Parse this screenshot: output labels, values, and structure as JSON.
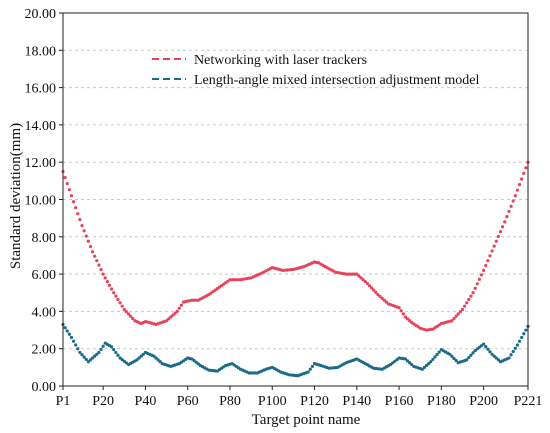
{
  "chart_data": {
    "type": "scatter",
    "xlabel": "Target point name",
    "ylabel": "Standard deviation(mm)",
    "xlim": [
      1,
      221
    ],
    "ylim": [
      0,
      20
    ],
    "x_tick_values": [
      1,
      20,
      40,
      60,
      80,
      100,
      120,
      140,
      160,
      180,
      200,
      221
    ],
    "x_tick_labels": [
      "P1",
      "P20",
      "P40",
      "P60",
      "P80",
      "P100",
      "P120",
      "P140",
      "P160",
      "P180",
      "P200",
      "P221"
    ],
    "y_tick_values": [
      0,
      2,
      4,
      6,
      8,
      10,
      12,
      14,
      16,
      18,
      20
    ],
    "y_tick_labels": [
      "0.00",
      "2.00",
      "4.00",
      "6.00",
      "8.00",
      "10.00",
      "12.00",
      "14.00",
      "16.00",
      "18.00",
      "20.00"
    ],
    "grid": "horizontal dashed",
    "legend_placement": "top-center",
    "series": [
      {
        "name": "Networking with laser trackers",
        "color": "#e8435a",
        "x": [
          1,
          5,
          10,
          15,
          20,
          25,
          30,
          35,
          38,
          40,
          42,
          45,
          50,
          55,
          58,
          62,
          65,
          70,
          75,
          80,
          85,
          90,
          95,
          100,
          105,
          110,
          115,
          120,
          122,
          125,
          130,
          135,
          140,
          145,
          150,
          155,
          160,
          163,
          166,
          170,
          173,
          176,
          180,
          185,
          190,
          195,
          200,
          205,
          210,
          215,
          221
        ],
        "y": [
          11.5,
          10.2,
          8.6,
          7.2,
          6.0,
          5.0,
          4.1,
          3.5,
          3.35,
          3.45,
          3.4,
          3.3,
          3.5,
          4.0,
          4.5,
          4.6,
          4.6,
          4.9,
          5.3,
          5.7,
          5.7,
          5.8,
          6.05,
          6.35,
          6.2,
          6.25,
          6.4,
          6.65,
          6.6,
          6.4,
          6.1,
          6.0,
          6.0,
          5.5,
          4.9,
          4.4,
          4.2,
          3.7,
          3.4,
          3.1,
          3.0,
          3.05,
          3.35,
          3.5,
          4.1,
          5.0,
          6.2,
          7.5,
          8.8,
          10.2,
          12.0
        ]
      },
      {
        "name": "Length-angle mixed intersection adjustment model",
        "color": "#1a6b8a",
        "x": [
          1,
          5,
          9,
          13,
          18,
          21,
          24,
          28,
          32,
          36,
          40,
          44,
          48,
          52,
          56,
          60,
          62,
          66,
          70,
          74,
          78,
          81,
          85,
          89,
          93,
          97,
          100,
          104,
          108,
          112,
          117,
          120,
          123,
          127,
          131,
          135,
          140,
          144,
          148,
          152,
          156,
          160,
          163,
          167,
          171,
          175,
          180,
          184,
          188,
          192,
          196,
          200,
          204,
          208,
          212,
          216,
          221
        ],
        "y": [
          3.3,
          2.6,
          1.8,
          1.3,
          1.8,
          2.3,
          2.1,
          1.5,
          1.15,
          1.4,
          1.8,
          1.6,
          1.2,
          1.05,
          1.2,
          1.5,
          1.45,
          1.1,
          0.85,
          0.8,
          1.1,
          1.2,
          0.9,
          0.7,
          0.7,
          0.9,
          1.0,
          0.75,
          0.6,
          0.55,
          0.75,
          1.2,
          1.1,
          0.95,
          1.0,
          1.25,
          1.45,
          1.2,
          0.95,
          0.9,
          1.15,
          1.5,
          1.45,
          1.05,
          0.9,
          1.3,
          1.95,
          1.7,
          1.25,
          1.4,
          1.9,
          2.25,
          1.7,
          1.3,
          1.5,
          2.2,
          3.2
        ]
      }
    ]
  }
}
